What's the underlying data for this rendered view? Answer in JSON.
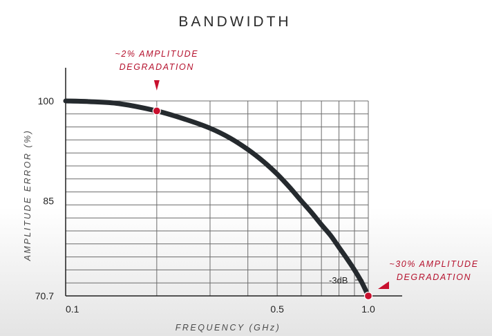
{
  "chart_data": {
    "type": "line",
    "title": "BANDWIDTH",
    "xlabel": "FREQUENCY (GHz)",
    "ylabel": "AMPLITUDE ERROR (%)",
    "x_scale": "log",
    "xlim": [
      0.1,
      1.0
    ],
    "ylim": [
      70.7,
      100
    ],
    "x_tick_labels": [
      "0.1",
      "0.5",
      "1.0"
    ],
    "x_ticks": [
      0.1,
      0.5,
      1.0
    ],
    "y_tick_labels": [
      "100",
      "85",
      "70.7"
    ],
    "y_ticks": [
      100,
      85,
      70.7
    ],
    "grid": true,
    "series": [
      {
        "x": [
          0.1,
          0.12,
          0.15,
          0.2,
          0.25,
          0.3,
          0.35,
          0.4,
          0.45,
          0.5,
          0.55,
          0.6,
          0.65,
          0.7,
          0.75,
          0.8,
          0.85,
          0.9,
          0.95,
          1.0
        ],
        "y": [
          100,
          99.9,
          99.6,
          98.5,
          97.2,
          95.9,
          94.4,
          92.7,
          90.9,
          89.0,
          87.0,
          85.0,
          83.2,
          81.4,
          79.8,
          78.0,
          76.3,
          74.6,
          72.8,
          70.7
        ]
      }
    ],
    "markers": [
      {
        "x": 0.2,
        "y": 98.5
      },
      {
        "x": 1.0,
        "y": 70.7
      }
    ],
    "annotations": [
      {
        "line1": "~2% AMPLITUDE",
        "line2": "DEGRADATION"
      },
      {
        "line1": "~30% AMPLITUDE",
        "line2": "DEGRADATION"
      },
      {
        "text": "-3dB"
      }
    ],
    "colors": {
      "curve": "#252a2e",
      "marker": "#c8102e",
      "annotation": "#b5122e",
      "grid": "#6b6b6b",
      "axis": "#1e1e1e"
    }
  }
}
